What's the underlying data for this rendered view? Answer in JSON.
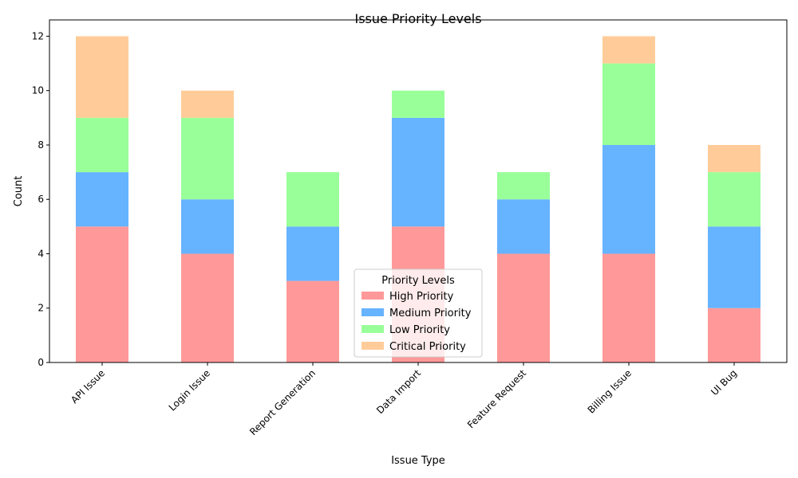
{
  "chart_data": {
    "type": "bar",
    "stacked": true,
    "title": "Issue Priority Levels",
    "xlabel": "Issue Type",
    "ylabel": "Count",
    "categories": [
      "API Issue",
      "Login Issue",
      "Report Generation",
      "Data Import",
      "Feature Request",
      "Billing Issue",
      "UI Bug"
    ],
    "series": [
      {
        "name": "High Priority",
        "color": "#ff9999",
        "values": [
          5,
          4,
          3,
          5,
          4,
          4,
          2
        ]
      },
      {
        "name": "Medium Priority",
        "color": "#66b3ff",
        "values": [
          2,
          2,
          2,
          4,
          2,
          4,
          3
        ]
      },
      {
        "name": "Low Priority",
        "color": "#99ff99",
        "values": [
          2,
          3,
          2,
          1,
          1,
          3,
          2
        ]
      },
      {
        "name": "Critical Priority",
        "color": "#ffcc99",
        "values": [
          3,
          1,
          0,
          0,
          0,
          1,
          1
        ]
      }
    ],
    "ylim": [
      0,
      12.6
    ],
    "yticks": [
      0,
      2,
      4,
      6,
      8,
      10,
      12
    ],
    "ytick_labels": [
      "0",
      "2",
      "4",
      "6",
      "8",
      "10",
      "12"
    ],
    "xtick_rotation": 45,
    "grid": false,
    "legend": {
      "title": "Priority Levels",
      "placement": "lower-center"
    }
  }
}
